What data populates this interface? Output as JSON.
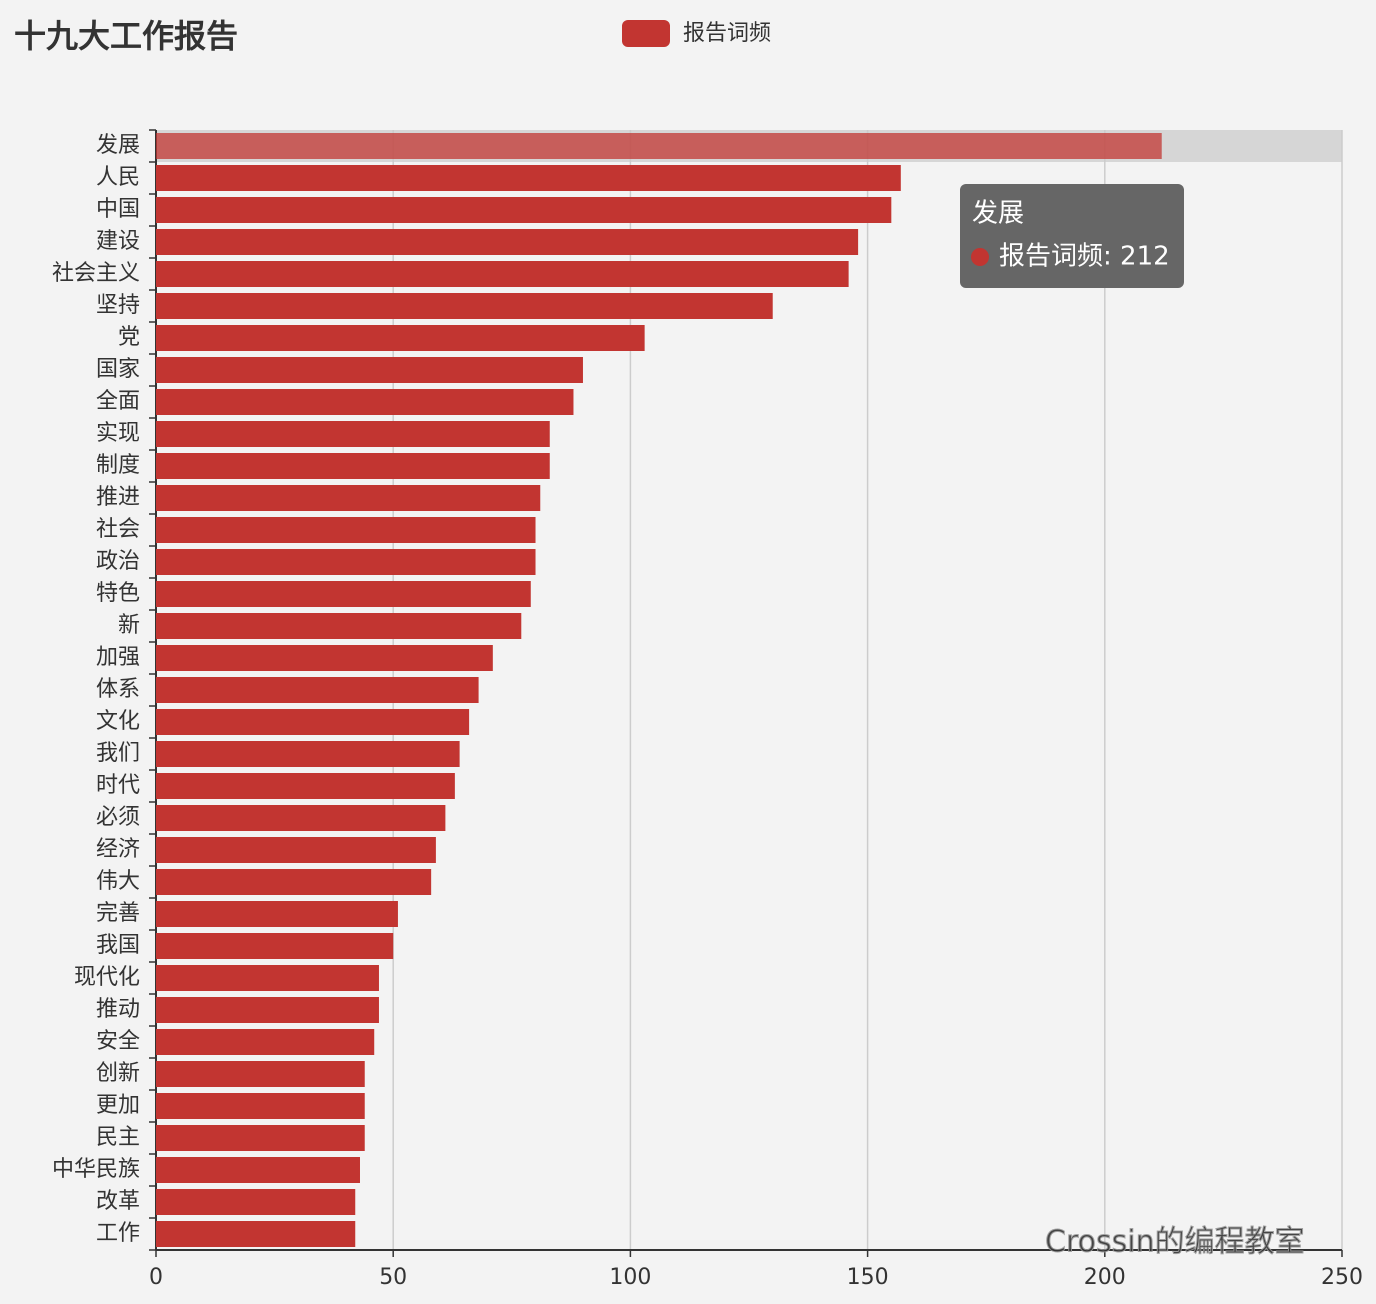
{
  "chart_data": {
    "type": "bar",
    "orientation": "horizontal",
    "title": "十九大工作报告",
    "categories": [
      "发展",
      "人民",
      "中国",
      "建设",
      "社会主义",
      "坚持",
      "党",
      "国家",
      "全面",
      "实现",
      "制度",
      "推进",
      "社会",
      "政治",
      "特色",
      "新",
      "加强",
      "体系",
      "文化",
      "我们",
      "时代",
      "必须",
      "经济",
      "伟大",
      "完善",
      "我国",
      "现代化",
      "推动",
      "安全",
      "创新",
      "更加",
      "民主",
      "中华民族",
      "改革",
      "工作"
    ],
    "series": [
      {
        "name": "报告词频",
        "color": "#c23531",
        "values": [
          212,
          157,
          155,
          148,
          146,
          130,
          103,
          90,
          88,
          83,
          83,
          81,
          80,
          80,
          79,
          77,
          71,
          68,
          66,
          64,
          63,
          61,
          59,
          58,
          51,
          50,
          47,
          47,
          46,
          44,
          44,
          44,
          43,
          42,
          42
        ]
      }
    ],
    "xlim": [
      0,
      250
    ],
    "xticks": [
      0,
      50,
      100,
      150,
      200,
      250
    ],
    "grid": true,
    "tooltip": {
      "title": "发展",
      "text": "报告词频: 212"
    },
    "watermark": "Crossin的编程教室"
  }
}
